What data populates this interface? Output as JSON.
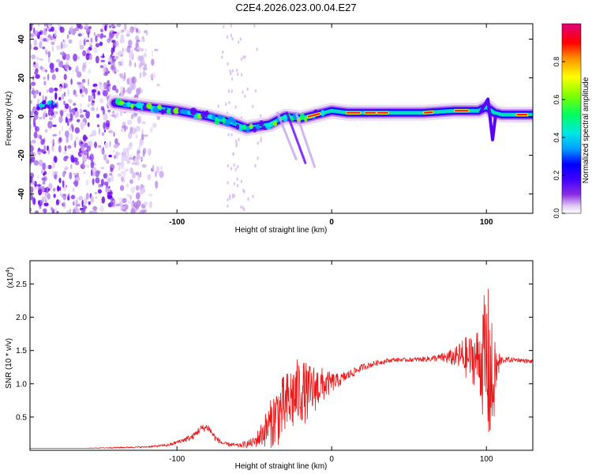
{
  "title": "C2E4.2026.023.00.04.E27",
  "chart_data": [
    {
      "type": "heatmap",
      "title": "C2E4.2026.023.00.04.E27",
      "xlabel": "Height of straight line (km)",
      "ylabel": "Frequency (Hz)",
      "xlim": [
        -195,
        130
      ],
      "ylim": [
        -50,
        48
      ],
      "xticks": [
        -100,
        0,
        100
      ],
      "xticklabels": [
        "-100",
        "0",
        "100"
      ],
      "yticks": [
        -40,
        -20,
        0,
        20,
        40
      ],
      "yticklabels": [
        "-40",
        "-20",
        "0",
        "20",
        "40"
      ],
      "colorbar": {
        "label": "Normalized spectral amplitude",
        "range": [
          0,
          1
        ],
        "ticks": [
          0,
          0.2,
          0.4,
          0.6,
          0.8
        ],
        "ticklabels": [
          "0.0",
          "0.2",
          "0.4",
          "0.6",
          "0.8"
        ],
        "colors": [
          "#ffffff",
          "#d8b8f0",
          "#8a2be2",
          "#5a00ff",
          "#0000ff",
          "#00a0ff",
          "#00e5e5",
          "#00ff60",
          "#7fff00",
          "#ffff00",
          "#ff8c00",
          "#ff0000",
          "#e0007a"
        ]
      },
      "ridge": {
        "name": "dominant frequency band",
        "x": [
          -195,
          -175,
          -140,
          -120,
          -100,
          -80,
          -65,
          -55,
          -40,
          -30,
          -20,
          -10,
          0,
          10,
          20,
          40,
          60,
          80,
          95,
          100,
          105,
          110,
          120,
          130
        ],
        "y": [
          6,
          6,
          7,
          5,
          3,
          0,
          -3,
          -6,
          -4,
          0,
          -1,
          1,
          3,
          2,
          2,
          2,
          2,
          3,
          3,
          5,
          2,
          1,
          1,
          1
        ]
      },
      "noise_region_x": [
        -195,
        -120
      ]
    },
    {
      "type": "line",
      "title": "",
      "xlabel": "Height of straight line (km)",
      "ylabel": "SNR (10 * v/v)",
      "scale_label": "(x10",
      "scale_exponent": "4",
      "xlim": [
        -195,
        130
      ],
      "ylim": [
        0,
        2.85
      ],
      "xticks": [
        -100,
        0,
        100
      ],
      "xticklabels": [
        "-100",
        "0",
        "100"
      ],
      "yticks": [
        0.5,
        1.0,
        1.5,
        2.0,
        2.5
      ],
      "yticklabels": [
        "0.5",
        "1.0",
        "1.5",
        "2.0",
        "2.5"
      ],
      "series": [
        {
          "name": "SNR",
          "color": "#e8191a",
          "x": [
            -195,
            -160,
            -140,
            -120,
            -105,
            -90,
            -85,
            -80,
            -75,
            -70,
            -60,
            -50,
            -45,
            -40,
            -35,
            -30,
            -25,
            -20,
            -15,
            -10,
            -5,
            0,
            5,
            10,
            20,
            30,
            40,
            50,
            60,
            70,
            80,
            85,
            90,
            95,
            98,
            100,
            102,
            104,
            106,
            110,
            120,
            130
          ],
          "y": [
            0.03,
            0.03,
            0.04,
            0.05,
            0.08,
            0.2,
            0.32,
            0.35,
            0.18,
            0.1,
            0.07,
            0.12,
            0.25,
            0.38,
            0.55,
            0.65,
            0.8,
            0.9,
            0.85,
            0.95,
            0.98,
            1.02,
            1.05,
            1.12,
            1.25,
            1.32,
            1.36,
            1.36,
            1.37,
            1.39,
            1.4,
            1.4,
            1.38,
            1.38,
            1.35,
            1.3,
            1.2,
            0.9,
            1.2,
            1.36,
            1.36,
            1.33
          ],
          "noise_amplitude": [
            0,
            0,
            0.01,
            0.01,
            0.02,
            0.05,
            0.06,
            0.06,
            0.05,
            0.03,
            0.03,
            0.08,
            0.2,
            0.35,
            0.5,
            0.5,
            0.55,
            0.5,
            0.45,
            0.35,
            0.25,
            0.15,
            0.1,
            0.08,
            0.05,
            0.04,
            0.03,
            0.03,
            0.04,
            0.06,
            0.15,
            0.3,
            0.35,
            0.5,
            0.9,
            1.3,
            1.2,
            0.9,
            0.4,
            0.05,
            0.03,
            0.03
          ]
        }
      ]
    }
  ]
}
